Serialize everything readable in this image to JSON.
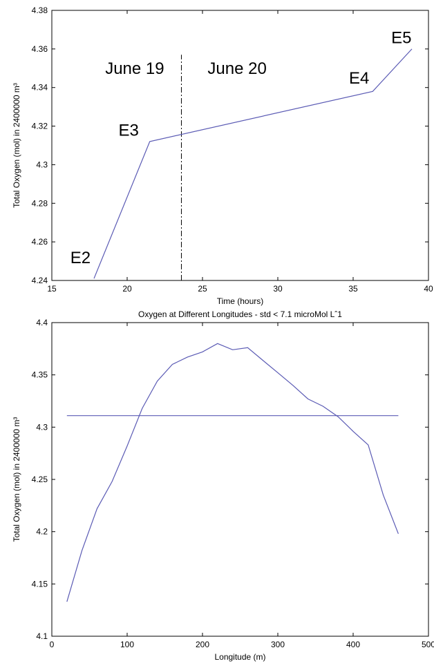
{
  "chart_data": [
    {
      "type": "line",
      "title": "",
      "xlabel": "Time (hours)",
      "ylabel": "Total Oxygen (mol) in 2400000 m³",
      "xlim": [
        15,
        40
      ],
      "ylim": [
        4.24,
        4.38
      ],
      "xticks": [
        "15",
        "20",
        "25",
        "30",
        "35",
        "40"
      ],
      "yticks": [
        "4.24",
        "4.26",
        "4.28",
        "4.3",
        "4.32",
        "4.34",
        "4.36",
        "4.38"
      ],
      "grid": false,
      "line_color": "#5a5ab4",
      "series": [
        {
          "x": [
            17.8,
            21.5,
            36.3,
            38.9
          ],
          "y": [
            4.241,
            4.312,
            4.338,
            4.36
          ]
        }
      ],
      "divider_x": 23.6,
      "annotations": [
        {
          "text": "June 19",
          "x": 20.5,
          "y": 4.347
        },
        {
          "text": "June 20",
          "x": 27.3,
          "y": 4.347
        },
        {
          "text": "E2",
          "x": 16.9,
          "y": 4.249
        },
        {
          "text": "E3",
          "x": 20.1,
          "y": 4.315
        },
        {
          "text": "E4",
          "x": 35.4,
          "y": 4.342
        },
        {
          "text": "E5",
          "x": 38.2,
          "y": 4.363
        }
      ]
    },
    {
      "type": "line",
      "title": "Oxygen at Different Longitudes - std < 7.1 microMol Lˆ1",
      "xlabel": "Longitude (m)",
      "ylabel": "Total Oxygen (mol) in 2400000 m³",
      "xlim": [
        0,
        500
      ],
      "ylim": [
        4.1,
        4.4
      ],
      "xticks": [
        "0",
        "100",
        "200",
        "300",
        "400",
        "500"
      ],
      "yticks": [
        "4.1",
        "4.15",
        "4.2",
        "4.25",
        "4.3",
        "4.35",
        "4.4"
      ],
      "grid": false,
      "line_color": "#5a5ab4",
      "series": [
        {
          "x": [
            20,
            40,
            60,
            80,
            100,
            120,
            140,
            160,
            180,
            200,
            220,
            240,
            260,
            280,
            300,
            320,
            340,
            360,
            380,
            400,
            420,
            440,
            460
          ],
          "y": [
            4.133,
            4.182,
            4.222,
            4.248,
            4.282,
            4.318,
            4.344,
            4.36,
            4.367,
            4.372,
            4.38,
            4.374,
            4.376,
            4.364,
            4.352,
            4.34,
            4.327,
            4.32,
            4.31,
            4.296,
            4.283,
            4.235,
            4.198
          ]
        },
        {
          "x": [
            20,
            460
          ],
          "y": [
            4.311,
            4.311
          ]
        }
      ]
    }
  ]
}
